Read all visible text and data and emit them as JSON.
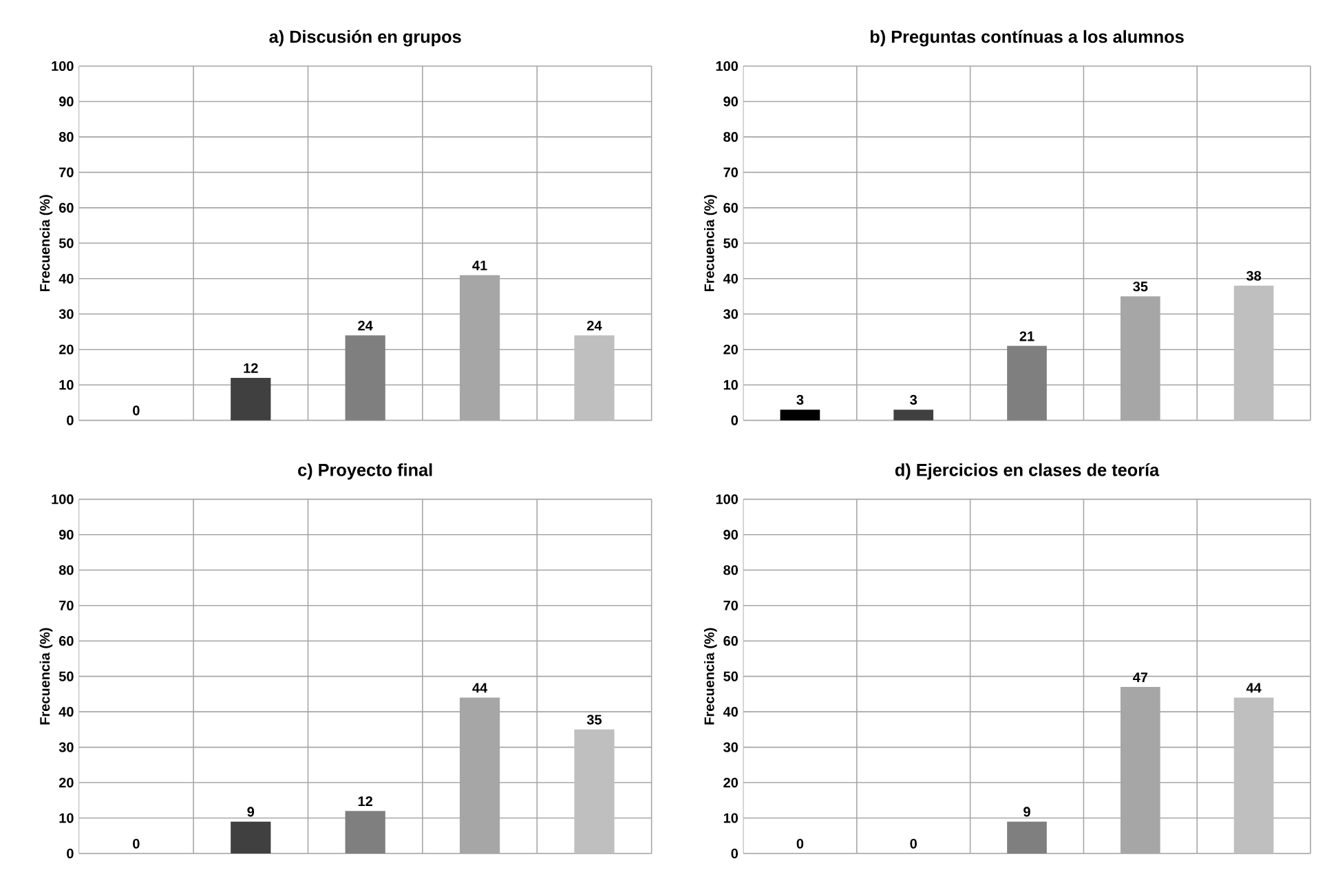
{
  "chart_data": [
    {
      "type": "bar",
      "title": "a) Discusión en grupos",
      "ylabel": "Frecuencia (%)",
      "categories": [
        null,
        null,
        null,
        null,
        null
      ],
      "values": [
        0,
        12,
        24,
        41,
        24
      ],
      "colors": [
        "#000000",
        "#404040",
        "#7f7f7f",
        "#a6a6a6",
        "#bfbfbf"
      ],
      "ylim": [
        0,
        100
      ],
      "yticks": [
        0,
        10,
        20,
        30,
        40,
        50,
        60,
        70,
        80,
        90,
        100
      ],
      "grid": true,
      "data_labels": true
    },
    {
      "type": "bar",
      "title": "b) Preguntas contínuas a los alumnos",
      "ylabel": "Frecuencia (%)",
      "categories": [
        null,
        null,
        null,
        null,
        null
      ],
      "values": [
        3,
        3,
        21,
        35,
        38
      ],
      "colors": [
        "#000000",
        "#404040",
        "#7f7f7f",
        "#a6a6a6",
        "#bfbfbf"
      ],
      "ylim": [
        0,
        100
      ],
      "yticks": [
        0,
        10,
        20,
        30,
        40,
        50,
        60,
        70,
        80,
        90,
        100
      ],
      "grid": true,
      "data_labels": true
    },
    {
      "type": "bar",
      "title": "c) Proyecto final",
      "ylabel": "Frecuencia (%)",
      "categories": [
        null,
        null,
        null,
        null,
        null
      ],
      "values": [
        0,
        9,
        12,
        44,
        35
      ],
      "colors": [
        "#000000",
        "#404040",
        "#7f7f7f",
        "#a6a6a6",
        "#bfbfbf"
      ],
      "ylim": [
        0,
        100
      ],
      "yticks": [
        0,
        10,
        20,
        30,
        40,
        50,
        60,
        70,
        80,
        90,
        100
      ],
      "grid": true,
      "data_labels": true
    },
    {
      "type": "bar",
      "title": "d) Ejercicios en clases de teoría",
      "ylabel": "Frecuencia (%)",
      "categories": [
        null,
        null,
        null,
        null,
        null
      ],
      "values": [
        0,
        0,
        9,
        47,
        44
      ],
      "colors": [
        "#000000",
        "#404040",
        "#7f7f7f",
        "#a6a6a6",
        "#bfbfbf"
      ],
      "ylim": [
        0,
        100
      ],
      "yticks": [
        0,
        10,
        20,
        30,
        40,
        50,
        60,
        70,
        80,
        90,
        100
      ],
      "grid": true,
      "data_labels": true
    }
  ]
}
